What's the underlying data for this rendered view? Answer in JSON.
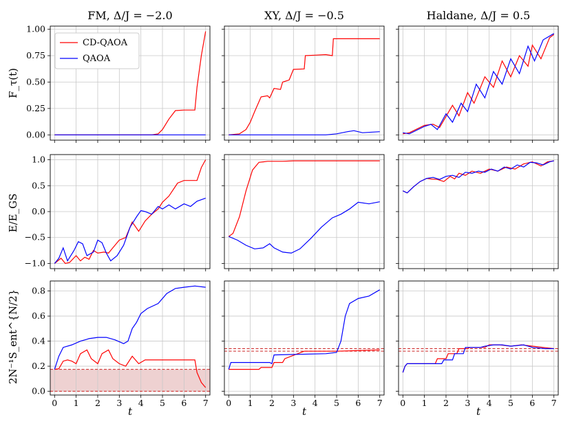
{
  "figure": {
    "xlabel": "t",
    "col_titles": [
      "FM, Δ/J = −2.0",
      "XY, Δ/J = −0.5",
      "Haldane, Δ/J = 0.5"
    ],
    "row_ylabels": [
      "F_τ(t)",
      "E/E_GS",
      "2N⁻¹S_ent^{N/2}"
    ],
    "legend": [
      "CD-QAOA",
      "QAOA"
    ],
    "colors": {
      "cd_qaoa": "#ff0000",
      "qaoa": "#0000ff",
      "grid": "#c8c8c8",
      "shade": "#e8c2c2",
      "ref_line": "#cc2222"
    }
  },
  "chart_data": [
    {
      "type": "line",
      "panel": "row1-col1",
      "title": "FM, Δ/J = −2.0",
      "ylabel": "F_τ(t)",
      "xlim": [
        -0.2,
        7.2
      ],
      "ylim": [
        -0.05,
        1.03
      ],
      "xticks": [
        0,
        1,
        2,
        3,
        4,
        5,
        6,
        7
      ],
      "yticks": [
        0.0,
        0.25,
        0.5,
        0.75,
        1.0
      ],
      "ytick_labels": [
        "0.00",
        "0.25",
        "0.50",
        "0.75",
        "1.00"
      ],
      "legend_position": "top-left",
      "grid": true,
      "series": [
        {
          "name": "CD-QAOA",
          "x": [
            0,
            4.5,
            4.8,
            5.0,
            5.3,
            5.6,
            6.0,
            6.5,
            6.6,
            6.8,
            7.0
          ],
          "y": [
            0,
            0,
            0.01,
            0.05,
            0.15,
            0.23,
            0.235,
            0.235,
            0.45,
            0.75,
            0.98
          ]
        },
        {
          "name": "QAOA",
          "x": [
            0,
            7
          ],
          "y": [
            0,
            0
          ]
        }
      ]
    },
    {
      "type": "line",
      "panel": "row1-col2",
      "title": "XY, Δ/J = −0.5",
      "xlim": [
        -0.2,
        7.2
      ],
      "ylim": [
        -0.05,
        1.03
      ],
      "xticks": [
        0,
        1,
        2,
        3,
        4,
        5,
        6,
        7
      ],
      "yticks": [
        0.0,
        0.25,
        0.5,
        0.75,
        1.0
      ],
      "grid": true,
      "series": [
        {
          "name": "CD-QAOA",
          "x": [
            0,
            0.5,
            0.8,
            1.0,
            1.2,
            1.5,
            1.8,
            1.9,
            2.1,
            2.4,
            2.5,
            2.8,
            3.0,
            3.5,
            3.55,
            4.0,
            4.5,
            4.8,
            4.85,
            5.0,
            5.1,
            7.0
          ],
          "y": [
            0,
            0.01,
            0.05,
            0.12,
            0.22,
            0.36,
            0.37,
            0.35,
            0.44,
            0.43,
            0.5,
            0.52,
            0.62,
            0.625,
            0.75,
            0.755,
            0.76,
            0.75,
            0.91,
            0.91,
            0.91,
            0.91
          ]
        },
        {
          "name": "QAOA",
          "x": [
            0,
            4.5,
            5.0,
            5.5,
            5.8,
            6.2,
            7.0
          ],
          "y": [
            0,
            0,
            0.01,
            0.03,
            0.04,
            0.02,
            0.03
          ]
        }
      ]
    },
    {
      "type": "line",
      "panel": "row1-col3",
      "title": "Haldane, Δ/J = 0.5",
      "xlim": [
        -0.2,
        7.2
      ],
      "ylim": [
        -0.05,
        1.03
      ],
      "xticks": [
        0,
        1,
        2,
        3,
        4,
        5,
        6,
        7
      ],
      "yticks": [
        0.0,
        0.25,
        0.5,
        0.75,
        1.0
      ],
      "grid": true,
      "series": [
        {
          "name": "CD-QAOA",
          "x": [
            0,
            0.3,
            1.0,
            1.4,
            1.7,
            2.3,
            2.6,
            3.0,
            3.3,
            3.8,
            4.2,
            4.6,
            5.0,
            5.4,
            5.8,
            6.0,
            6.4,
            6.8,
            7.0
          ],
          "y": [
            0.01,
            0.02,
            0.09,
            0.1,
            0.07,
            0.28,
            0.18,
            0.4,
            0.3,
            0.55,
            0.45,
            0.7,
            0.55,
            0.75,
            0.65,
            0.85,
            0.72,
            0.92,
            0.95
          ]
        },
        {
          "name": "QAOA",
          "x": [
            0,
            0.3,
            1.0,
            1.3,
            1.6,
            2.0,
            2.3,
            2.7,
            3.0,
            3.4,
            3.8,
            4.2,
            4.6,
            5.0,
            5.4,
            5.8,
            6.1,
            6.5,
            7.0
          ],
          "y": [
            0.02,
            0.01,
            0.08,
            0.1,
            0.05,
            0.2,
            0.12,
            0.3,
            0.22,
            0.48,
            0.35,
            0.6,
            0.48,
            0.72,
            0.58,
            0.84,
            0.7,
            0.9,
            0.96
          ]
        }
      ]
    },
    {
      "type": "line",
      "panel": "row2-col1",
      "ylabel": "E/E_GS",
      "xlim": [
        -0.2,
        7.2
      ],
      "ylim": [
        -1.1,
        1.1
      ],
      "xticks": [
        0,
        1,
        2,
        3,
        4,
        5,
        6,
        7
      ],
      "yticks": [
        -1.0,
        -0.5,
        0.0,
        0.5,
        1.0
      ],
      "ytick_labels": [
        "−1.0",
        "−0.5",
        "0.0",
        "0.5",
        "1.0"
      ],
      "grid": true,
      "series": [
        {
          "name": "CD-QAOA",
          "x": [
            0,
            0.3,
            0.5,
            0.7,
            1.0,
            1.2,
            1.4,
            1.6,
            1.8,
            2.0,
            2.3,
            2.5,
            2.7,
            3.0,
            3.3,
            3.6,
            3.9,
            4.2,
            4.5,
            4.8,
            5.0,
            5.3,
            5.7,
            6.0,
            6.6,
            6.8,
            7.0
          ],
          "y": [
            -1.0,
            -0.9,
            -1.0,
            -0.98,
            -0.85,
            -0.95,
            -0.88,
            -0.92,
            -0.75,
            -0.8,
            -0.78,
            -0.8,
            -0.7,
            -0.55,
            -0.5,
            -0.2,
            -0.38,
            -0.18,
            -0.05,
            0.05,
            0.18,
            0.3,
            0.55,
            0.6,
            0.6,
            0.85,
            1.0
          ]
        },
        {
          "name": "QAOA",
          "x": [
            0,
            0.2,
            0.4,
            0.6,
            0.9,
            1.1,
            1.3,
            1.5,
            1.8,
            2.0,
            2.2,
            2.4,
            2.6,
            2.9,
            3.2,
            3.5,
            3.8,
            4.0,
            4.2,
            4.5,
            4.8,
            5.0,
            5.3,
            5.6,
            6.0,
            6.3,
            6.6,
            7.0
          ],
          "y": [
            -1.0,
            -0.9,
            -0.7,
            -0.95,
            -0.75,
            -0.58,
            -0.62,
            -0.85,
            -0.78,
            -0.55,
            -0.6,
            -0.8,
            -0.95,
            -0.85,
            -0.65,
            -0.3,
            -0.1,
            0.02,
            0.0,
            -0.05,
            0.1,
            0.05,
            0.13,
            0.05,
            0.15,
            0.1,
            0.2,
            0.26
          ]
        }
      ]
    },
    {
      "type": "line",
      "panel": "row2-col2",
      "xlim": [
        -0.2,
        7.2
      ],
      "ylim": [
        -1.1,
        1.1
      ],
      "xticks": [
        0,
        1,
        2,
        3,
        4,
        5,
        6,
        7
      ],
      "yticks": [
        -1.0,
        -0.5,
        0.0,
        0.5,
        1.0
      ],
      "grid": true,
      "series": [
        {
          "name": "CD-QAOA",
          "x": [
            0,
            0.2,
            0.5,
            0.8,
            1.1,
            1.4,
            1.6,
            1.8,
            2.0,
            2.5,
            3.0,
            4.0,
            5.0,
            7.0
          ],
          "y": [
            -0.48,
            -0.42,
            -0.1,
            0.4,
            0.8,
            0.95,
            0.96,
            0.97,
            0.97,
            0.97,
            0.98,
            0.98,
            0.98,
            0.98
          ]
        },
        {
          "name": "QAOA",
          "x": [
            0,
            0.4,
            0.8,
            1.2,
            1.6,
            1.9,
            2.1,
            2.5,
            2.9,
            3.3,
            3.8,
            4.3,
            4.8,
            5.2,
            5.6,
            6.0,
            6.5,
            7.0
          ],
          "y": [
            -0.48,
            -0.55,
            -0.65,
            -0.72,
            -0.7,
            -0.62,
            -0.7,
            -0.78,
            -0.8,
            -0.72,
            -0.52,
            -0.3,
            -0.12,
            -0.05,
            0.05,
            0.18,
            0.15,
            0.19
          ]
        }
      ]
    },
    {
      "type": "line",
      "panel": "row2-col3",
      "xlim": [
        -0.2,
        7.2
      ],
      "ylim": [
        -1.1,
        1.1
      ],
      "xticks": [
        0,
        1,
        2,
        3,
        4,
        5,
        6,
        7
      ],
      "yticks": [
        -1.0,
        -0.5,
        0.0,
        0.5,
        1.0
      ],
      "grid": true,
      "series": [
        {
          "name": "CD-QAOA",
          "x": [
            0,
            0.2,
            0.5,
            0.8,
            1.1,
            1.3,
            1.6,
            1.9,
            2.2,
            2.4,
            2.6,
            2.9,
            3.2,
            3.6,
            4.0,
            4.4,
            4.8,
            5.2,
            5.6,
            6.0,
            6.4,
            6.7,
            7.0
          ],
          "y": [
            0.4,
            0.36,
            0.48,
            0.58,
            0.64,
            0.63,
            0.62,
            0.58,
            0.68,
            0.63,
            0.74,
            0.7,
            0.78,
            0.74,
            0.82,
            0.78,
            0.86,
            0.82,
            0.92,
            0.96,
            0.88,
            0.96,
            0.98
          ]
        },
        {
          "name": "QAOA",
          "x": [
            0,
            0.2,
            0.5,
            0.8,
            1.1,
            1.4,
            1.7,
            2.0,
            2.3,
            2.6,
            2.9,
            3.2,
            3.5,
            3.8,
            4.1,
            4.4,
            4.7,
            5.0,
            5.3,
            5.6,
            5.9,
            6.2,
            6.5,
            6.8,
            7.0
          ],
          "y": [
            0.4,
            0.36,
            0.48,
            0.58,
            0.64,
            0.66,
            0.62,
            0.68,
            0.7,
            0.66,
            0.76,
            0.74,
            0.78,
            0.76,
            0.82,
            0.78,
            0.86,
            0.82,
            0.9,
            0.86,
            0.95,
            0.94,
            0.9,
            0.96,
            0.98
          ]
        }
      ]
    },
    {
      "type": "line",
      "panel": "row3-col1",
      "ylabel": "2N⁻¹S_ent^{N/2}",
      "xlabel": "t",
      "xlim": [
        -0.2,
        7.2
      ],
      "ylim": [
        -0.03,
        0.88
      ],
      "xticks": [
        0,
        1,
        2,
        3,
        4,
        5,
        6,
        7
      ],
      "yticks": [
        0.0,
        0.2,
        0.4,
        0.6,
        0.8
      ],
      "ytick_labels": [
        "0.0",
        "0.2",
        "0.4",
        "0.6",
        "0.8"
      ],
      "grid": true,
      "shaded_band": [
        0.0,
        0.175
      ],
      "ref_lines": [
        0.0,
        0.175
      ],
      "series": [
        {
          "name": "CD-QAOA",
          "x": [
            0,
            0.2,
            0.4,
            0.6,
            0.8,
            1.0,
            1.2,
            1.5,
            1.7,
            2.0,
            2.2,
            2.5,
            2.7,
            3.0,
            3.3,
            3.6,
            3.9,
            4.2,
            4.5,
            5.0,
            5.5,
            6.0,
            6.5,
            6.6,
            6.8,
            7.0
          ],
          "y": [
            0.175,
            0.18,
            0.24,
            0.25,
            0.24,
            0.22,
            0.3,
            0.33,
            0.26,
            0.22,
            0.3,
            0.33,
            0.26,
            0.22,
            0.2,
            0.28,
            0.22,
            0.25,
            0.25,
            0.25,
            0.25,
            0.25,
            0.25,
            0.15,
            0.07,
            0.03
          ]
        },
        {
          "name": "QAOA",
          "x": [
            0,
            0.2,
            0.4,
            0.8,
            1.2,
            1.6,
            2.0,
            2.4,
            2.8,
            3.2,
            3.4,
            3.6,
            3.8,
            4.0,
            4.3,
            4.8,
            5.2,
            5.6,
            6.0,
            6.5,
            7.0
          ],
          "y": [
            0.175,
            0.28,
            0.35,
            0.37,
            0.4,
            0.42,
            0.43,
            0.43,
            0.41,
            0.38,
            0.4,
            0.5,
            0.55,
            0.62,
            0.66,
            0.7,
            0.78,
            0.82,
            0.83,
            0.84,
            0.83
          ]
        }
      ]
    },
    {
      "type": "line",
      "panel": "row3-col2",
      "xlabel": "t",
      "xlim": [
        -0.2,
        7.2
      ],
      "ylim": [
        -0.03,
        0.88
      ],
      "xticks": [
        0,
        1,
        2,
        3,
        4,
        5,
        6,
        7
      ],
      "yticks": [
        0.0,
        0.2,
        0.4,
        0.6,
        0.8
      ],
      "grid": true,
      "ref_lines": [
        0.34,
        0.32
      ],
      "series": [
        {
          "name": "CD-QAOA",
          "x": [
            0,
            1.4,
            1.5,
            2.0,
            2.1,
            2.5,
            2.6,
            3.2,
            3.5,
            4.0,
            5.0,
            7.0
          ],
          "y": [
            0.175,
            0.175,
            0.19,
            0.19,
            0.23,
            0.23,
            0.26,
            0.3,
            0.32,
            0.32,
            0.32,
            0.33
          ]
        },
        {
          "name": "QAOA",
          "x": [
            0,
            0.1,
            1.9,
            2.0,
            2.1,
            4.5,
            5.0,
            5.2,
            5.4,
            5.6,
            6.0,
            6.5,
            7.0
          ],
          "y": [
            0.175,
            0.23,
            0.23,
            0.22,
            0.29,
            0.3,
            0.31,
            0.4,
            0.6,
            0.7,
            0.74,
            0.76,
            0.81
          ]
        }
      ]
    },
    {
      "type": "line",
      "panel": "row3-col3",
      "xlabel": "t",
      "xlim": [
        -0.2,
        7.2
      ],
      "ylim": [
        -0.03,
        0.88
      ],
      "xticks": [
        0,
        1,
        2,
        3,
        4,
        5,
        6,
        7
      ],
      "yticks": [
        0.0,
        0.2,
        0.4,
        0.6,
        0.8
      ],
      "grid": true,
      "ref_lines": [
        0.34,
        0.32
      ],
      "series": [
        {
          "name": "CD-QAOA",
          "x": [
            0,
            0.1,
            0.2,
            1.5,
            1.6,
            2.0,
            2.1,
            2.5,
            2.6,
            3.0,
            3.1,
            3.8,
            4.0,
            4.5,
            5.0,
            5.5,
            6.0,
            6.5,
            7.0
          ],
          "y": [
            0.15,
            0.2,
            0.22,
            0.22,
            0.26,
            0.26,
            0.3,
            0.3,
            0.34,
            0.34,
            0.35,
            0.35,
            0.37,
            0.37,
            0.36,
            0.37,
            0.36,
            0.35,
            0.34
          ]
        },
        {
          "name": "QAOA",
          "x": [
            0,
            0.1,
            0.2,
            1.8,
            1.9,
            2.3,
            2.4,
            2.8,
            2.9,
            3.6,
            3.8,
            4.2,
            4.6,
            5.0,
            5.6,
            6.0,
            6.6,
            7.0
          ],
          "y": [
            0.15,
            0.2,
            0.22,
            0.22,
            0.25,
            0.25,
            0.3,
            0.3,
            0.35,
            0.35,
            0.36,
            0.37,
            0.37,
            0.36,
            0.37,
            0.35,
            0.34,
            0.34
          ]
        }
      ]
    }
  ]
}
